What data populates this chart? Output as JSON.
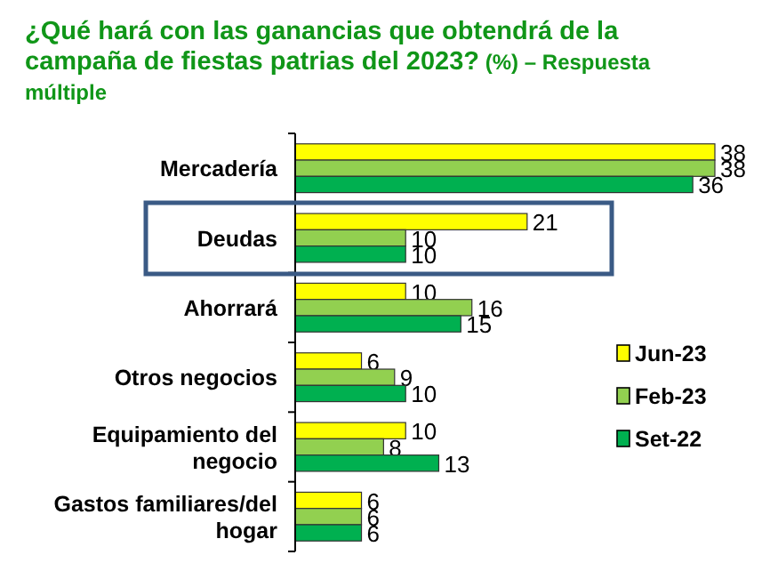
{
  "chart_data": {
    "type": "bar",
    "orientation": "horizontal",
    "title": "¿Qué hará con las ganancias que obtendrá de la campaña de fiestas patrias del 2023?",
    "subtitle": "(%) – Respuesta múltiple",
    "categories": [
      "Mercadería",
      "Deudas",
      "Ahorrará",
      "Otros negocios",
      "Equipamiento del negocio",
      "Gastos familiares/del hogar"
    ],
    "series": [
      {
        "name": "Jun-23",
        "color": "#ffff00",
        "values": [
          38,
          21,
          10,
          6,
          10,
          6
        ]
      },
      {
        "name": "Feb-23",
        "color": "#92d050",
        "values": [
          38,
          10,
          16,
          9,
          8,
          6
        ]
      },
      {
        "name": "Set-22",
        "color": "#00b050",
        "values": [
          36,
          10,
          15,
          10,
          13,
          6
        ]
      }
    ],
    "data_labels": true,
    "legend": "right"
  }
}
